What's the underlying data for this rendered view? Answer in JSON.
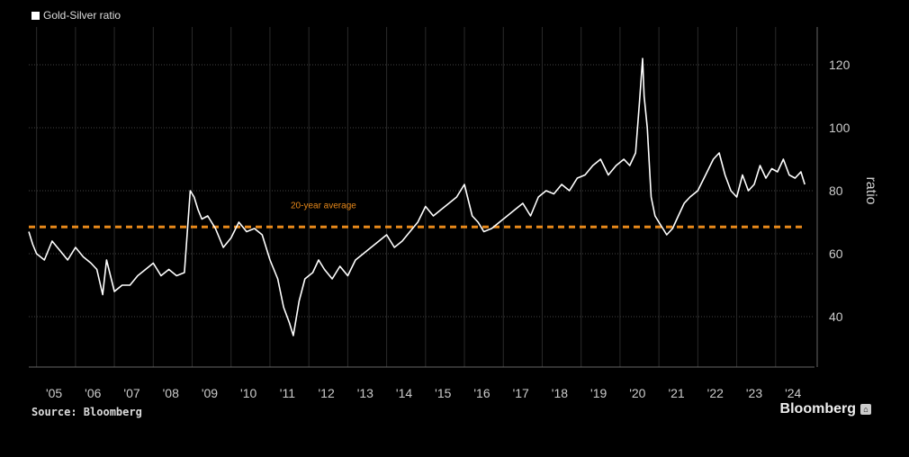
{
  "legend": {
    "label": "Gold-Silver ratio"
  },
  "source": "Source: Bloomberg",
  "brand": "Bloomberg",
  "colors": {
    "background": "#000000",
    "line": "#ffffff",
    "average": "#e8891a",
    "grid": "#444444"
  },
  "chart_data": {
    "type": "line",
    "title": "",
    "xlabel": "",
    "ylabel": "ratio",
    "xlim": [
      2004.4,
      2024.6
    ],
    "ylim": [
      24,
      132
    ],
    "yticks": [
      40,
      60,
      80,
      100,
      120
    ],
    "xticks": [
      "'05",
      "'06",
      "'07",
      "'08",
      "'09",
      "'10",
      "'11",
      "'12",
      "'13",
      "'14",
      "'15",
      "'16",
      "'17",
      "'18",
      "'19",
      "'20",
      "'21",
      "'22",
      "'23",
      "'24"
    ],
    "xtick_positions": [
      2005,
      2006,
      2007,
      2008,
      2009,
      2010,
      2011,
      2012,
      2013,
      2014,
      2015,
      2016,
      2017,
      2018,
      2019,
      2020,
      2021,
      2022,
      2023,
      2024
    ],
    "grid": "horizontal",
    "average": {
      "label": "20-year average",
      "value": 68.5
    },
    "series": [
      {
        "name": "Gold-Silver ratio",
        "x": [
          2004.4,
          2004.5,
          2004.6,
          2004.8,
          2005.0,
          2005.2,
          2005.4,
          2005.6,
          2005.8,
          2006.0,
          2006.15,
          2006.3,
          2006.4,
          2006.6,
          2006.8,
          2007.0,
          2007.2,
          2007.4,
          2007.6,
          2007.8,
          2008.0,
          2008.2,
          2008.4,
          2008.55,
          2008.65,
          2008.75,
          2008.85,
          2009.0,
          2009.2,
          2009.4,
          2009.6,
          2009.8,
          2010.0,
          2010.2,
          2010.4,
          2010.6,
          2010.8,
          2010.95,
          2011.1,
          2011.2,
          2011.35,
          2011.5,
          2011.7,
          2011.85,
          2012.0,
          2012.2,
          2012.4,
          2012.6,
          2012.8,
          2013.0,
          2013.2,
          2013.4,
          2013.6,
          2013.8,
          2014.0,
          2014.2,
          2014.4,
          2014.6,
          2014.8,
          2015.0,
          2015.2,
          2015.4,
          2015.6,
          2015.8,
          2015.95,
          2016.1,
          2016.3,
          2016.5,
          2016.7,
          2016.9,
          2017.1,
          2017.3,
          2017.5,
          2017.7,
          2017.9,
          2018.1,
          2018.3,
          2018.5,
          2018.7,
          2018.9,
          2019.1,
          2019.3,
          2019.5,
          2019.7,
          2019.85,
          2020.0,
          2020.1,
          2020.18,
          2020.22,
          2020.3,
          2020.4,
          2020.5,
          2020.6,
          2020.7,
          2020.8,
          2020.95,
          2021.1,
          2021.25,
          2021.4,
          2021.6,
          2021.8,
          2022.0,
          2022.15,
          2022.3,
          2022.45,
          2022.6,
          2022.75,
          2022.9,
          2023.05,
          2023.2,
          2023.35,
          2023.5,
          2023.65,
          2023.8,
          2023.95,
          2024.1,
          2024.25,
          2024.35
        ],
        "values": [
          67,
          63,
          60,
          58,
          64,
          61,
          58,
          62,
          59,
          57,
          55,
          47,
          58,
          48,
          50,
          50,
          53,
          55,
          57,
          53,
          55,
          53,
          54,
          80,
          78,
          74,
          71,
          72,
          68,
          62,
          65,
          70,
          67,
          68,
          66,
          58,
          52,
          43,
          38,
          34,
          45,
          52,
          54,
          58,
          55,
          52,
          56,
          53,
          58,
          60,
          62,
          64,
          66,
          62,
          64,
          67,
          70,
          75,
          72,
          74,
          76,
          78,
          82,
          72,
          70,
          67,
          68,
          70,
          72,
          74,
          76,
          72,
          78,
          80,
          79,
          82,
          80,
          84,
          85,
          88,
          90,
          85,
          88,
          90,
          88,
          92,
          108,
          122,
          110,
          100,
          78,
          72,
          70,
          68,
          66,
          68,
          72,
          76,
          78,
          80,
          85,
          90,
          92,
          85,
          80,
          78,
          85,
          80,
          82,
          88,
          84,
          87,
          86,
          90,
          85,
          84,
          86,
          82
        ]
      }
    ]
  }
}
